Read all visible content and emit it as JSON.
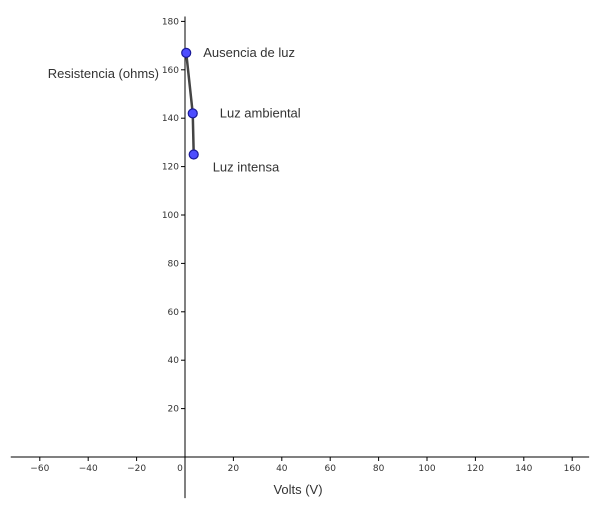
{
  "chart_data": {
    "type": "line",
    "title": "",
    "xlabel": "Volts (V)",
    "ylabel": "Resistencia (ohms)",
    "xlim": [
      -72,
      167
    ],
    "ylim": [
      -17,
      182
    ],
    "x_ticks": [
      -60,
      -40,
      -20,
      0,
      20,
      40,
      60,
      80,
      100,
      120,
      140,
      160
    ],
    "y_ticks": [
      20,
      40,
      60,
      80,
      100,
      120,
      140,
      160,
      180
    ],
    "grid": false,
    "series": [
      {
        "color": "#4d4dff",
        "points": [
          {
            "x": 0.5,
            "y": 167,
            "label": "Ausencia de luz"
          },
          {
            "x": 3.2,
            "y": 142,
            "label": "Luz ambiental"
          },
          {
            "x": 3.6,
            "y": 125,
            "label": "Luz intensa"
          }
        ]
      }
    ]
  }
}
